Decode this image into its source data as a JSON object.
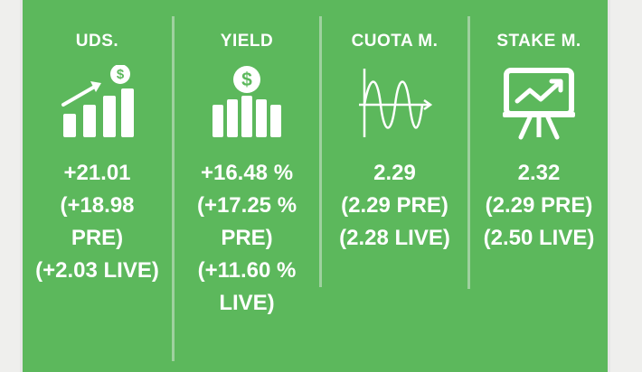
{
  "colors": {
    "panel": "#5cb85c",
    "text": "#ffffff",
    "divider": "#9fd19f"
  },
  "columns": [
    {
      "title": "UDS.",
      "icon": "growth-chart-dollar-icon",
      "lines": [
        "+21.01",
        "(+18.98",
        "PRE)",
        "(+2.03 LIVE)"
      ]
    },
    {
      "title": "YIELD",
      "icon": "dollar-coin-bars-icon",
      "lines": [
        "+16.48 %",
        "(+17.25 %",
        "PRE)",
        "(+11.60 %",
        "LIVE)"
      ]
    },
    {
      "title": "CUOTA M.",
      "icon": "waveform-graph-icon",
      "lines": [
        "2.29",
        "(2.29 PRE)",
        "(2.28 LIVE)"
      ]
    },
    {
      "title": "STAKE M.",
      "icon": "presentation-board-icon",
      "lines": [
        "2.32",
        "(2.29 PRE)",
        "(2.50 LIVE)"
      ]
    }
  ]
}
